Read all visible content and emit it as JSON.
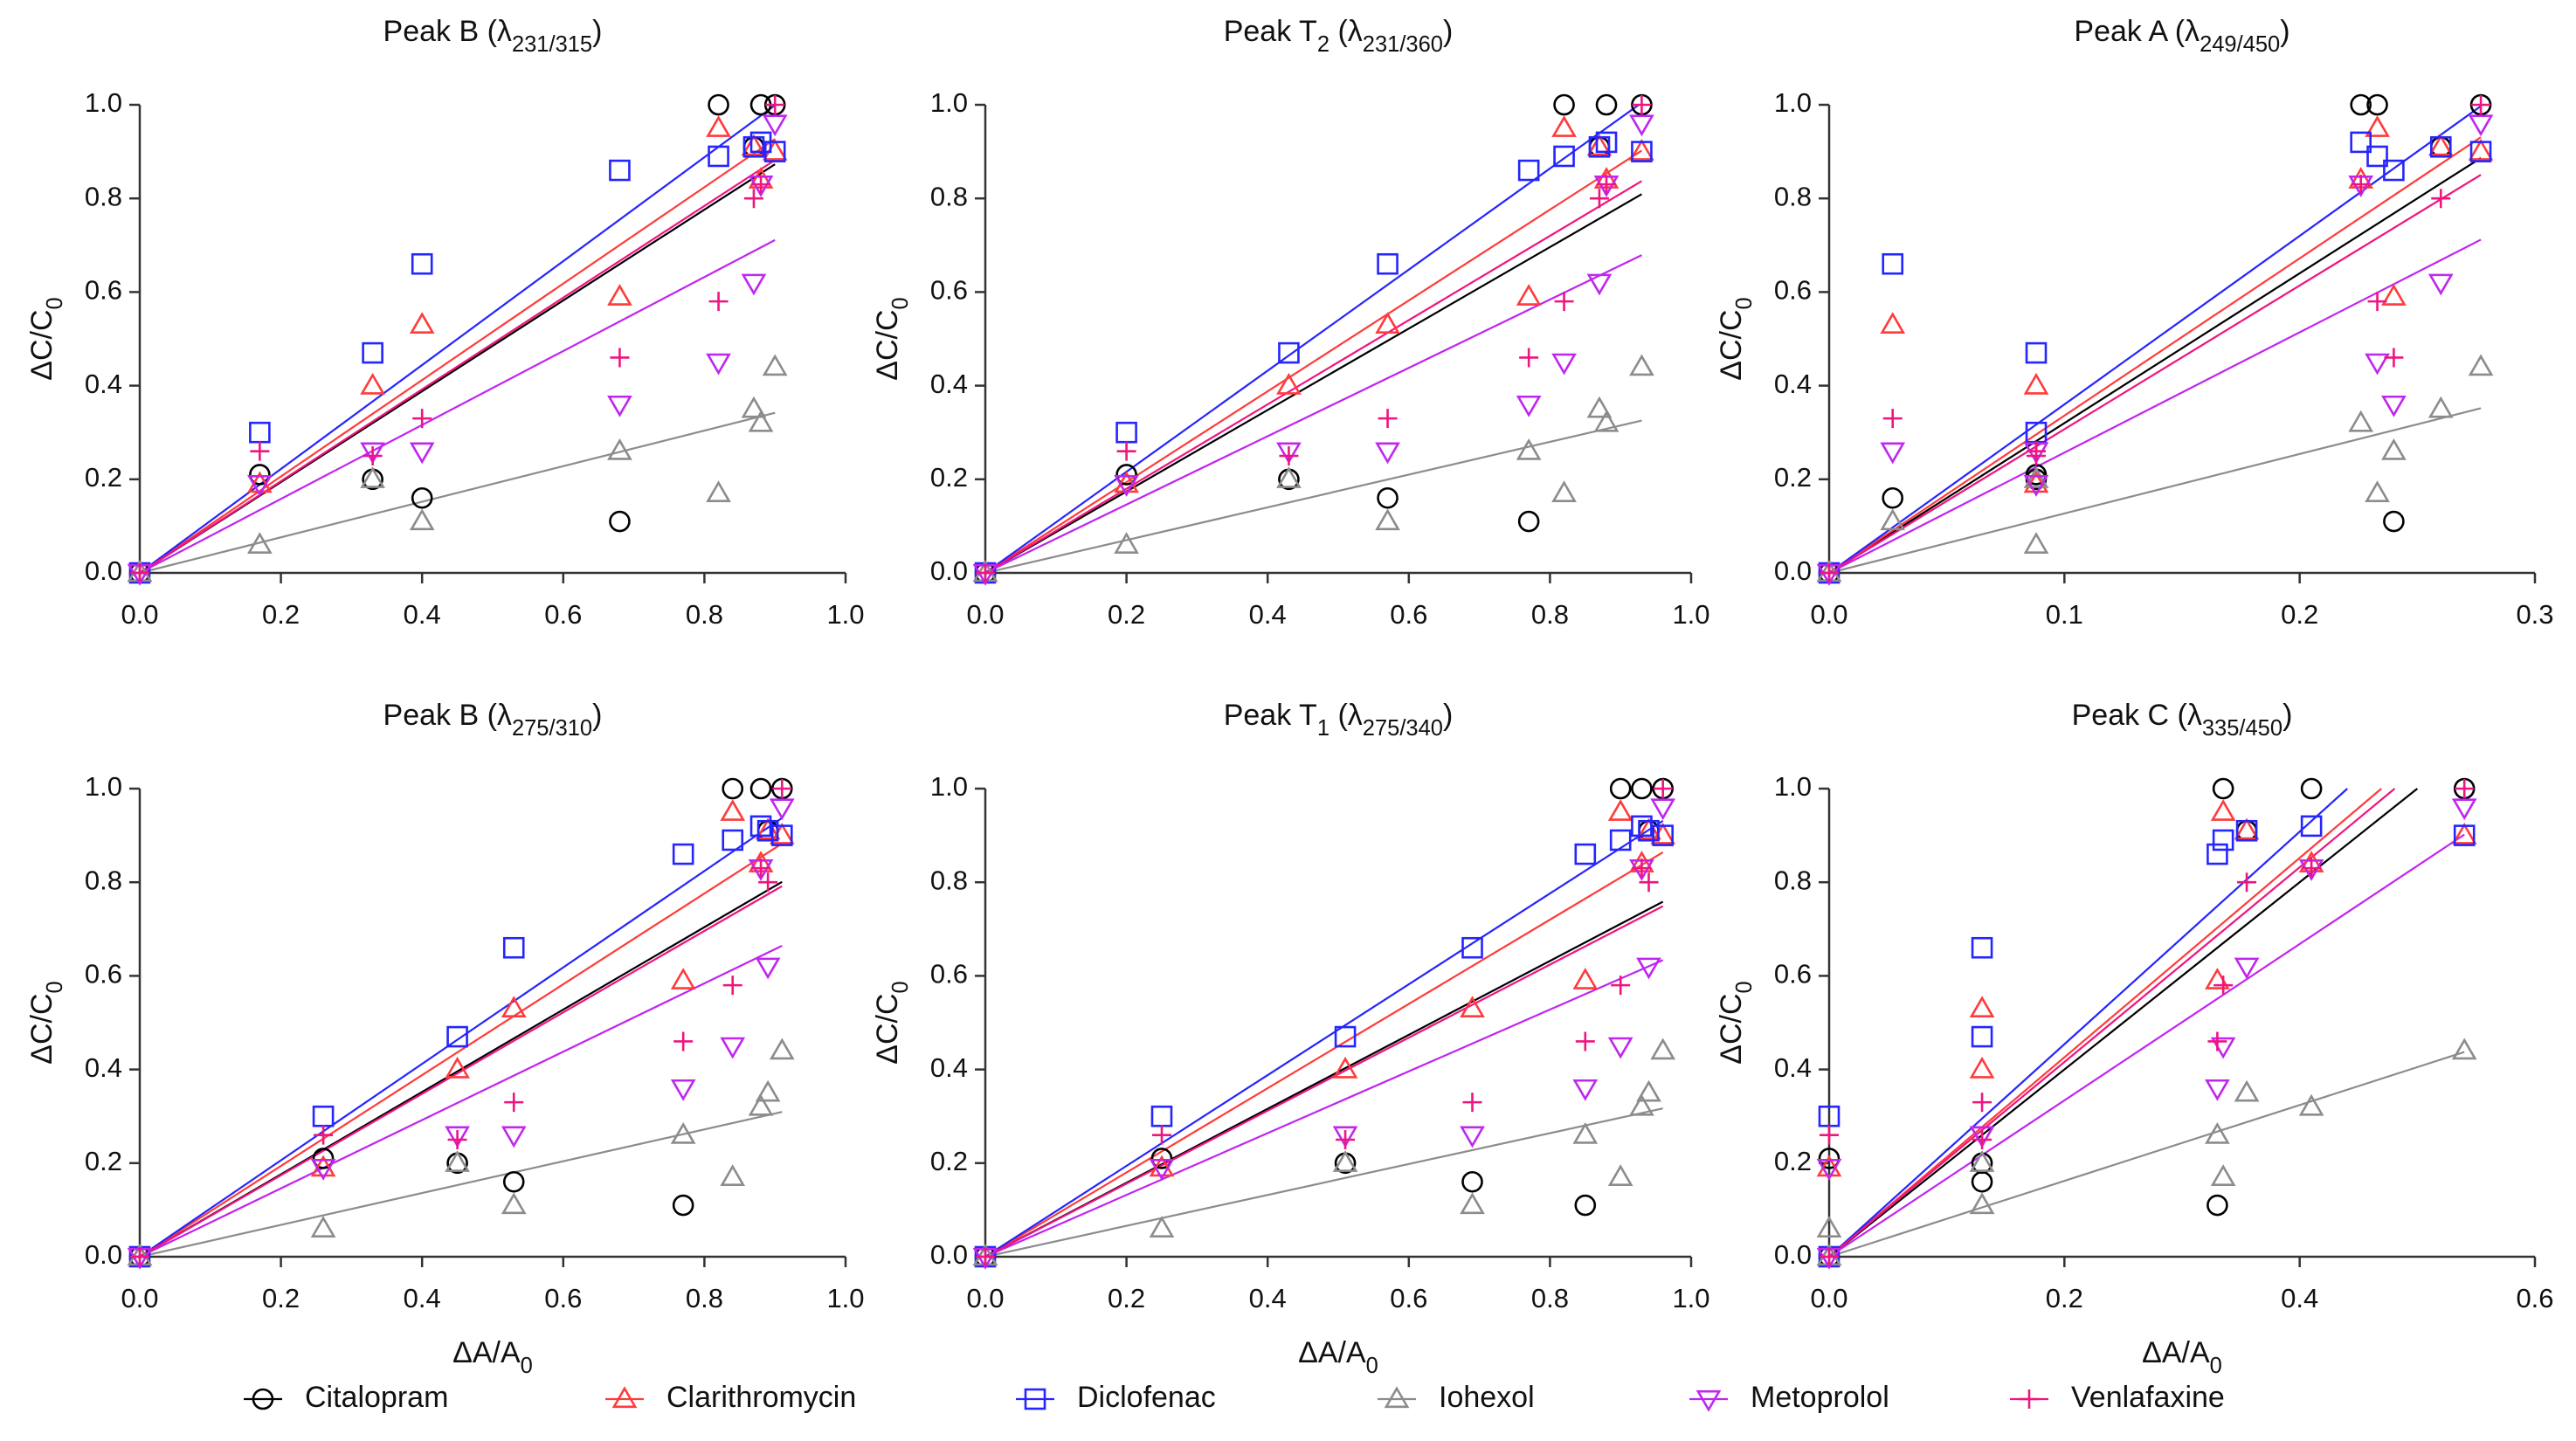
{
  "legend": [
    {
      "name": "Citalopram",
      "color": "#000000",
      "marker": "circle"
    },
    {
      "name": "Clarithromycin",
      "color": "#ff3b3b",
      "marker": "triangle"
    },
    {
      "name": "Diclofenac",
      "color": "#2525ff",
      "marker": "square"
    },
    {
      "name": "Iohexol",
      "color": "#8c8c8c",
      "marker": "triangle"
    },
    {
      "name": "Metoprolol",
      "color": "#c026f0",
      "marker": "triangle-down"
    },
    {
      "name": "Venlafaxine",
      "color": "#f0147f",
      "marker": "plus"
    }
  ],
  "chart_data": [
    {
      "type": "scatter",
      "title": [
        {
          "text": "Peak B (λ"
        },
        {
          "text": "231/315",
          "sub": true
        },
        {
          "text": ")"
        }
      ],
      "ylabel": [
        {
          "text": "ΔC/C"
        },
        {
          "text": "0",
          "sub": true
        }
      ],
      "x": [
        0,
        0.17,
        0.33,
        0.4,
        0.68,
        0.82,
        0.87,
        0.88,
        0.9
      ],
      "xlim": [
        0,
        1
      ],
      "xticks": [
        {
          "value": 0,
          "label": "0.0"
        },
        0.2,
        0.4,
        0.6,
        0.8,
        {
          "value": 1,
          "label": "1.0"
        }
      ],
      "ylim": [
        0,
        1
      ],
      "yticks": [
        {
          "value": 0,
          "label": "0.0"
        },
        0.2,
        0.4,
        0.6,
        0.8,
        {
          "value": 1,
          "label": "1.0"
        }
      ],
      "series": [
        {
          "values": [
            0,
            0.21,
            0.2,
            0.16,
            0.11,
            1.0,
            0.91,
            1.0,
            1.0
          ],
          "slope": 0.97
        },
        {
          "values": [
            0,
            0.19,
            0.4,
            0.53,
            0.59,
            0.95,
            0.91,
            0.84,
            0.9
          ],
          "slope": 1.03
        },
        {
          "values": [
            0,
            0.3,
            0.47,
            0.66,
            0.86,
            0.89,
            0.91,
            0.92,
            0.9
          ],
          "slope": 1.11
        },
        {
          "values": [
            0,
            0.06,
            0.2,
            0.11,
            0.26,
            0.17,
            0.35,
            0.32,
            0.44
          ],
          "slope": 0.38
        },
        {
          "values": [
            0,
            0.19,
            0.26,
            0.26,
            0.36,
            0.45,
            0.62,
            0.83,
            0.96
          ],
          "slope": 0.79
        },
        {
          "values": [
            0,
            0.26,
            0.25,
            0.33,
            0.46,
            0.58,
            0.8,
            0.83,
            1.0
          ],
          "slope": 0.98
        }
      ]
    },
    {
      "type": "scatter",
      "title": [
        {
          "text": "Peak T"
        },
        {
          "text": "2",
          "sub": true
        },
        {
          "text": " (λ"
        },
        {
          "text": "231/360",
          "sub": true
        },
        {
          "text": ")"
        }
      ],
      "ylabel": [
        {
          "text": "ΔC/C"
        },
        {
          "text": "0",
          "sub": true
        }
      ],
      "x": [
        0,
        0.2,
        0.43,
        0.57,
        0.77,
        0.82,
        0.87,
        0.88,
        0.93
      ],
      "xlim": [
        0,
        1
      ],
      "xticks": [
        {
          "value": 0,
          "label": "0.0"
        },
        0.2,
        0.4,
        0.6,
        0.8,
        {
          "value": 1,
          "label": "1.0"
        }
      ],
      "ylim": [
        0,
        1
      ],
      "yticks": [
        {
          "value": 0,
          "label": "0.0"
        },
        0.2,
        0.4,
        0.6,
        0.8,
        {
          "value": 1,
          "label": "1.0"
        }
      ],
      "series": [
        {
          "values": [
            0,
            0.21,
            0.2,
            0.16,
            0.11,
            1.0,
            0.91,
            1.0,
            1.0
          ],
          "slope": 0.87
        },
        {
          "values": [
            0,
            0.19,
            0.4,
            0.53,
            0.59,
            0.95,
            0.91,
            0.84,
            0.9
          ],
          "slope": 0.97
        },
        {
          "values": [
            0,
            0.3,
            0.47,
            0.66,
            0.86,
            0.89,
            0.91,
            0.92,
            0.9
          ],
          "slope": 1.08
        },
        {
          "values": [
            0,
            0.06,
            0.2,
            0.11,
            0.26,
            0.17,
            0.35,
            0.32,
            0.44
          ],
          "slope": 0.35
        },
        {
          "values": [
            0,
            0.19,
            0.26,
            0.26,
            0.36,
            0.45,
            0.62,
            0.83,
            0.96
          ],
          "slope": 0.73
        },
        {
          "values": [
            0,
            0.26,
            0.25,
            0.33,
            0.46,
            0.58,
            0.8,
            0.83,
            1.0
          ],
          "slope": 0.9
        }
      ]
    },
    {
      "type": "scatter",
      "title": [
        {
          "text": "Peak A (λ"
        },
        {
          "text": "249/450",
          "sub": true
        },
        {
          "text": ")"
        }
      ],
      "ylabel": [
        {
          "text": "ΔC/C"
        },
        {
          "text": "0",
          "sub": true
        }
      ],
      "x": [
        0,
        0.088,
        0.088,
        0.027,
        0.24,
        0.233,
        0.26,
        0.226,
        0.277
      ],
      "xlim": [
        0,
        0.3
      ],
      "xticks": [
        {
          "value": 0,
          "label": "0.0"
        },
        0.1,
        0.2,
        0.3
      ],
      "ylim": [
        0,
        1
      ],
      "yticks": [
        {
          "value": 0,
          "label": "0.0"
        },
        0.2,
        0.4,
        0.6,
        0.8,
        {
          "value": 1,
          "label": "1.0"
        }
      ],
      "series": [
        {
          "values": [
            0,
            0.21,
            0.2,
            0.16,
            0.11,
            1.0,
            0.91,
            1.0,
            1.0
          ],
          "slope": 3.2
        },
        {
          "values": [
            0,
            0.19,
            0.4,
            0.53,
            0.59,
            0.95,
            0.91,
            0.84,
            0.9
          ],
          "slope": 3.36
        },
        {
          "values": [
            0,
            0.3,
            0.47,
            0.66,
            0.86,
            0.89,
            0.91,
            0.92,
            0.9
          ],
          "slope": 3.6
        },
        {
          "values": [
            0,
            0.06,
            0.2,
            0.11,
            0.26,
            0.17,
            0.35,
            0.32,
            0.44
          ],
          "slope": 1.27
        },
        {
          "values": [
            0,
            0.19,
            0.26,
            0.26,
            0.36,
            0.45,
            0.62,
            0.83,
            0.96
          ],
          "slope": 2.57
        },
        {
          "values": [
            0,
            0.26,
            0.25,
            0.33,
            0.46,
            0.58,
            0.8,
            0.83,
            1.0
          ],
          "slope": 3.07
        }
      ]
    },
    {
      "type": "scatter",
      "title": [
        {
          "text": "Peak B (λ"
        },
        {
          "text": "275/310",
          "sub": true
        },
        {
          "text": ")"
        }
      ],
      "ylabel": [
        {
          "text": "ΔC/C"
        },
        {
          "text": "0",
          "sub": true
        }
      ],
      "xlabel": [
        {
          "text": "ΔA/A"
        },
        {
          "text": "0",
          "sub": true
        }
      ],
      "x": [
        0,
        0.26,
        0.45,
        0.53,
        0.77,
        0.84,
        0.89,
        0.88,
        0.91
      ],
      "xlim": [
        0,
        1
      ],
      "xticks": [
        {
          "value": 0,
          "label": "0.0"
        },
        0.2,
        0.4,
        0.6,
        0.8,
        {
          "value": 1,
          "label": "1.0"
        }
      ],
      "ylim": [
        0,
        1
      ],
      "yticks": [
        {
          "value": 0,
          "label": "0.0"
        },
        0.2,
        0.4,
        0.6,
        0.8,
        {
          "value": 1,
          "label": "1.0"
        }
      ],
      "series": [
        {
          "values": [
            0,
            0.21,
            0.2,
            0.16,
            0.11,
            1.0,
            0.91,
            1.0,
            1.0
          ],
          "slope": 0.88
        },
        {
          "values": [
            0,
            0.19,
            0.4,
            0.53,
            0.59,
            0.95,
            0.91,
            0.84,
            0.9
          ],
          "slope": 0.97
        },
        {
          "values": [
            0,
            0.3,
            0.47,
            0.66,
            0.86,
            0.89,
            0.91,
            0.92,
            0.9
          ],
          "slope": 1.03
        },
        {
          "values": [
            0,
            0.06,
            0.2,
            0.11,
            0.26,
            0.17,
            0.35,
            0.32,
            0.44
          ],
          "slope": 0.34
        },
        {
          "values": [
            0,
            0.19,
            0.26,
            0.26,
            0.36,
            0.45,
            0.62,
            0.83,
            0.96
          ],
          "slope": 0.73
        },
        {
          "values": [
            0,
            0.26,
            0.25,
            0.33,
            0.46,
            0.58,
            0.8,
            0.83,
            1.0
          ],
          "slope": 0.87
        }
      ]
    },
    {
      "type": "scatter",
      "title": [
        {
          "text": "Peak T"
        },
        {
          "text": "1",
          "sub": true
        },
        {
          "text": " (λ"
        },
        {
          "text": "275/340",
          "sub": true
        },
        {
          "text": ")"
        }
      ],
      "ylabel": [
        {
          "text": "ΔC/C"
        },
        {
          "text": "0",
          "sub": true
        }
      ],
      "xlabel": [
        {
          "text": "ΔA/A"
        },
        {
          "text": "0",
          "sub": true
        }
      ],
      "x": [
        0,
        0.25,
        0.51,
        0.69,
        0.85,
        0.9,
        0.94,
        0.93,
        0.96
      ],
      "xlim": [
        0,
        1
      ],
      "xticks": [
        {
          "value": 0,
          "label": "0.0"
        },
        0.2,
        0.4,
        0.6,
        0.8,
        {
          "value": 1,
          "label": "1.0"
        }
      ],
      "ylim": [
        0,
        1
      ],
      "yticks": [
        {
          "value": 0,
          "label": "0.0"
        },
        0.2,
        0.4,
        0.6,
        0.8,
        {
          "value": 1,
          "label": "1.0"
        }
      ],
      "series": [
        {
          "values": [
            0,
            0.21,
            0.2,
            0.16,
            0.11,
            1.0,
            0.91,
            1.0,
            1.0
          ],
          "slope": 0.79
        },
        {
          "values": [
            0,
            0.19,
            0.4,
            0.53,
            0.59,
            0.95,
            0.91,
            0.84,
            0.9
          ],
          "slope": 0.9
        },
        {
          "values": [
            0,
            0.3,
            0.47,
            0.66,
            0.86,
            0.89,
            0.91,
            0.92,
            0.9
          ],
          "slope": 0.97
        },
        {
          "values": [
            0,
            0.06,
            0.2,
            0.11,
            0.26,
            0.17,
            0.35,
            0.32,
            0.44
          ],
          "slope": 0.33
        },
        {
          "values": [
            0,
            0.19,
            0.26,
            0.26,
            0.36,
            0.45,
            0.62,
            0.83,
            0.96
          ],
          "slope": 0.66
        },
        {
          "values": [
            0,
            0.26,
            0.25,
            0.33,
            0.46,
            0.58,
            0.8,
            0.83,
            1.0
          ],
          "slope": 0.78
        }
      ]
    },
    {
      "type": "scatter",
      "title": [
        {
          "text": "Peak C (λ"
        },
        {
          "text": "335/450",
          "sub": true
        },
        {
          "text": ")"
        }
      ],
      "ylabel": [
        {
          "text": "ΔC/C"
        },
        {
          "text": "0",
          "sub": true
        }
      ],
      "xlabel": [
        {
          "text": "ΔA/A"
        },
        {
          "text": "0",
          "sub": true
        }
      ],
      "x": [
        0,
        0,
        0.13,
        0.13,
        0.33,
        0.335,
        0.355,
        0.41,
        0.54
      ],
      "xlim": [
        0,
        0.6
      ],
      "xticks": [
        {
          "value": 0,
          "label": "0.0"
        },
        0.2,
        0.4,
        0.6
      ],
      "ylim": [
        0,
        1
      ],
      "yticks": [
        {
          "value": 0,
          "label": "0.0"
        },
        0.2,
        0.4,
        0.6,
        0.8,
        {
          "value": 1,
          "label": "1.0"
        }
      ],
      "series": [
        {
          "values": [
            0,
            0.21,
            0.2,
            0.16,
            0.11,
            1.0,
            0.91,
            1.0,
            1.0
          ],
          "slope": 2.0
        },
        {
          "values": [
            0,
            0.19,
            0.4,
            0.53,
            0.59,
            0.95,
            0.91,
            0.84,
            0.9
          ],
          "slope": 2.13
        },
        {
          "values": [
            0,
            0.3,
            0.47,
            0.66,
            0.86,
            0.89,
            0.91,
            0.92,
            0.9
          ],
          "slope": 2.27
        },
        {
          "values": [
            0,
            0.06,
            0.2,
            0.11,
            0.26,
            0.17,
            0.35,
            0.32,
            0.44
          ],
          "slope": 0.81
        },
        {
          "values": [
            0,
            0.19,
            0.26,
            0.26,
            0.36,
            0.45,
            0.62,
            0.83,
            0.96
          ],
          "slope": 1.67
        },
        {
          "values": [
            0,
            0.26,
            0.25,
            0.33,
            0.46,
            0.58,
            0.8,
            0.83,
            1.0
          ],
          "slope": 2.08
        }
      ]
    }
  ]
}
